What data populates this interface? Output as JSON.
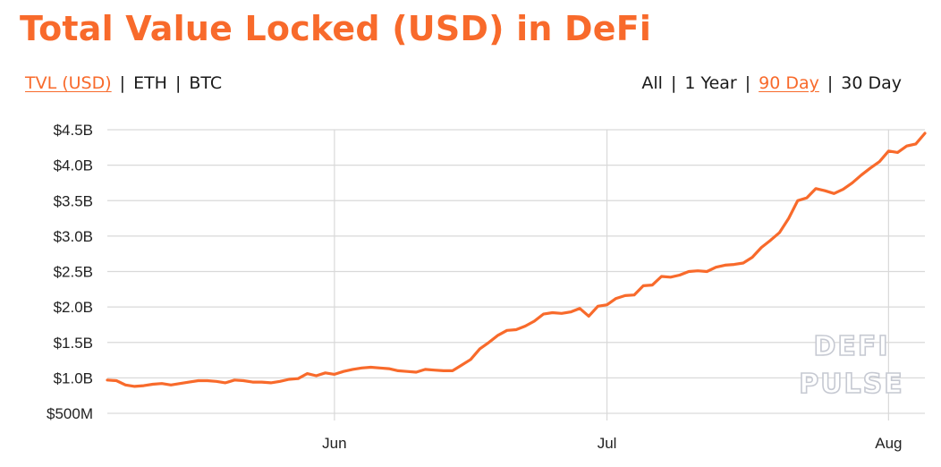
{
  "title": "Total Value Locked (USD) in DeFi",
  "colors": {
    "accent": "#f86a2b",
    "text": "#1a1a1a",
    "grid": "#d9d9d9",
    "watermark_outline": "#c6c9d2"
  },
  "metric_options": [
    {
      "label": "TVL (USD)",
      "active": true
    },
    {
      "label": "ETH",
      "active": false
    },
    {
      "label": "BTC",
      "active": false
    }
  ],
  "range_options": [
    {
      "label": "All",
      "active": false
    },
    {
      "label": "1 Year",
      "active": false
    },
    {
      "label": "90 Day",
      "active": true
    },
    {
      "label": "30 Day",
      "active": false
    }
  ],
  "separator": "|",
  "watermark": [
    "DEFI",
    "PULSE"
  ],
  "chart_data": {
    "type": "line",
    "title": "Total Value Locked (USD) in DeFi",
    "xlabel": "",
    "ylabel": "",
    "x": [
      "2020-05-07",
      "2020-05-08",
      "2020-05-09",
      "2020-05-10",
      "2020-05-11",
      "2020-05-12",
      "2020-05-13",
      "2020-05-14",
      "2020-05-15",
      "2020-05-16",
      "2020-05-17",
      "2020-05-18",
      "2020-05-19",
      "2020-05-20",
      "2020-05-21",
      "2020-05-22",
      "2020-05-23",
      "2020-05-24",
      "2020-05-25",
      "2020-05-26",
      "2020-05-27",
      "2020-05-28",
      "2020-05-29",
      "2020-05-30",
      "2020-05-31",
      "2020-06-01",
      "2020-06-02",
      "2020-06-03",
      "2020-06-04",
      "2020-06-05",
      "2020-06-06",
      "2020-06-07",
      "2020-06-08",
      "2020-06-09",
      "2020-06-10",
      "2020-06-11",
      "2020-06-12",
      "2020-06-13",
      "2020-06-14",
      "2020-06-15",
      "2020-06-16",
      "2020-06-17",
      "2020-06-18",
      "2020-06-19",
      "2020-06-20",
      "2020-06-21",
      "2020-06-22",
      "2020-06-23",
      "2020-06-24",
      "2020-06-25",
      "2020-06-26",
      "2020-06-27",
      "2020-06-28",
      "2020-06-29",
      "2020-06-30",
      "2020-07-01",
      "2020-07-02",
      "2020-07-03",
      "2020-07-04",
      "2020-07-05",
      "2020-07-06",
      "2020-07-07",
      "2020-07-08",
      "2020-07-09",
      "2020-07-10",
      "2020-07-11",
      "2020-07-12",
      "2020-07-13",
      "2020-07-14",
      "2020-07-15",
      "2020-07-16",
      "2020-07-17",
      "2020-07-18",
      "2020-07-19",
      "2020-07-20",
      "2020-07-21",
      "2020-07-22",
      "2020-07-23",
      "2020-07-24",
      "2020-07-25",
      "2020-07-26",
      "2020-07-27",
      "2020-07-28",
      "2020-07-29",
      "2020-07-30",
      "2020-07-31",
      "2020-08-01",
      "2020-08-02",
      "2020-08-03",
      "2020-08-04",
      "2020-08-05"
    ],
    "series": [
      {
        "values": [
          0.97,
          0.96,
          0.9,
          0.88,
          0.89,
          0.91,
          0.92,
          0.9,
          0.92,
          0.94,
          0.96,
          0.96,
          0.95,
          0.93,
          0.97,
          0.96,
          0.94,
          0.94,
          0.93,
          0.95,
          0.98,
          0.99,
          1.06,
          1.03,
          1.07,
          1.05,
          1.09,
          1.12,
          1.14,
          1.15,
          1.14,
          1.13,
          1.1,
          1.09,
          1.08,
          1.12,
          1.11,
          1.1,
          1.1,
          1.18,
          1.26,
          1.41,
          1.5,
          1.6,
          1.67,
          1.68,
          1.73,
          1.8,
          1.9,
          1.92,
          1.91,
          1.93,
          1.98,
          1.87,
          2.01,
          2.03,
          2.12,
          2.16,
          2.17,
          2.3,
          2.31,
          2.43,
          2.42,
          2.45,
          2.5,
          2.51,
          2.5,
          2.56,
          2.59,
          2.6,
          2.62,
          2.7,
          2.84,
          2.94,
          3.05,
          3.25,
          3.5,
          3.54,
          3.67,
          3.64,
          3.6,
          3.66,
          3.75,
          3.86,
          3.96,
          4.05,
          4.2,
          4.18,
          4.27,
          4.3,
          4.45
        ]
      }
    ],
    "y_unit": "USD billions",
    "ylim": [
      0.5,
      4.5
    ],
    "yticks": [
      {
        "value": 4.5,
        "label": "$4.5B"
      },
      {
        "value": 4.0,
        "label": "$4.0B"
      },
      {
        "value": 3.5,
        "label": "$3.5B"
      },
      {
        "value": 3.0,
        "label": "$3.0B"
      },
      {
        "value": 2.5,
        "label": "$2.5B"
      },
      {
        "value": 2.0,
        "label": "$2.0B"
      },
      {
        "value": 1.5,
        "label": "$1.5B"
      },
      {
        "value": 1.0,
        "label": "$1.0B"
      },
      {
        "value": 0.5,
        "label": "$500M"
      }
    ],
    "xticks": [
      {
        "value": "2020-06-01",
        "label": "Jun"
      },
      {
        "value": "2020-07-01",
        "label": "Jul"
      },
      {
        "value": "2020-08-01",
        "label": "Aug"
      }
    ],
    "grid": true,
    "legend": "none"
  }
}
